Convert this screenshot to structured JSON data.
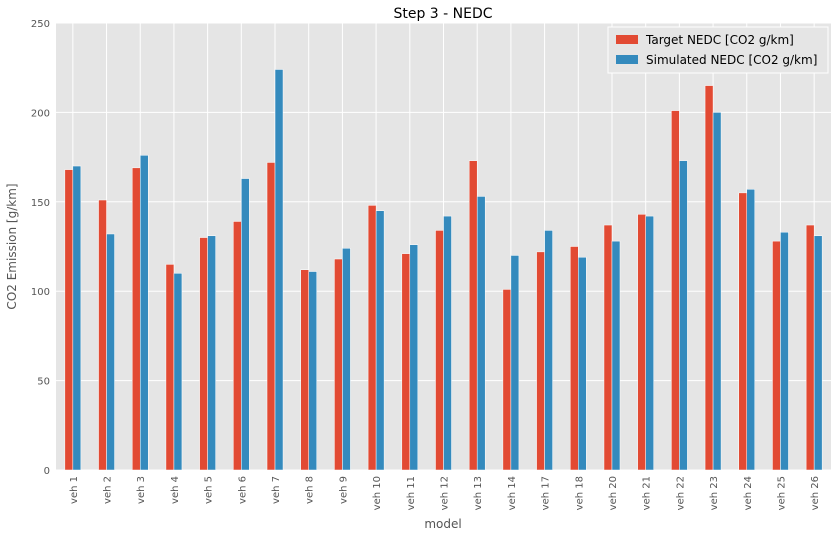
{
  "chart_data": {
    "type": "bar",
    "title": "Step 3 - NEDC",
    "xlabel": "model",
    "ylabel": "CO2 Emission [g/km]",
    "ylim": [
      0,
      250
    ],
    "yticks": [
      0,
      50,
      100,
      150,
      200,
      250
    ],
    "grid": true,
    "legend_position": "top-right",
    "categories": [
      "veh 1",
      "veh 2",
      "veh 3",
      "veh 4",
      "veh 5",
      "veh 6",
      "veh 7",
      "veh 8",
      "veh 9",
      "veh 10",
      "veh 11",
      "veh 12",
      "veh 13",
      "veh 14",
      "veh 17",
      "veh 18",
      "veh 20",
      "veh 21",
      "veh 22",
      "veh 23",
      "veh 24",
      "veh 25",
      "veh 26"
    ],
    "series": [
      {
        "name": "Target NEDC [CO2 g/km]",
        "color": "#E24A33",
        "values": [
          168,
          151,
          169,
          115,
          130,
          139,
          172,
          112,
          118,
          148,
          121,
          134,
          173,
          101,
          122,
          125,
          137,
          143,
          201,
          215,
          155,
          128,
          137
        ]
      },
      {
        "name": "Simulated NEDC [CO2 g/km]",
        "color": "#348ABD",
        "values": [
          170,
          132,
          176,
          110,
          131,
          163,
          224,
          111,
          124,
          145,
          126,
          142,
          153,
          120,
          134,
          119,
          128,
          142,
          173,
          200,
          157,
          133,
          131
        ]
      }
    ]
  }
}
